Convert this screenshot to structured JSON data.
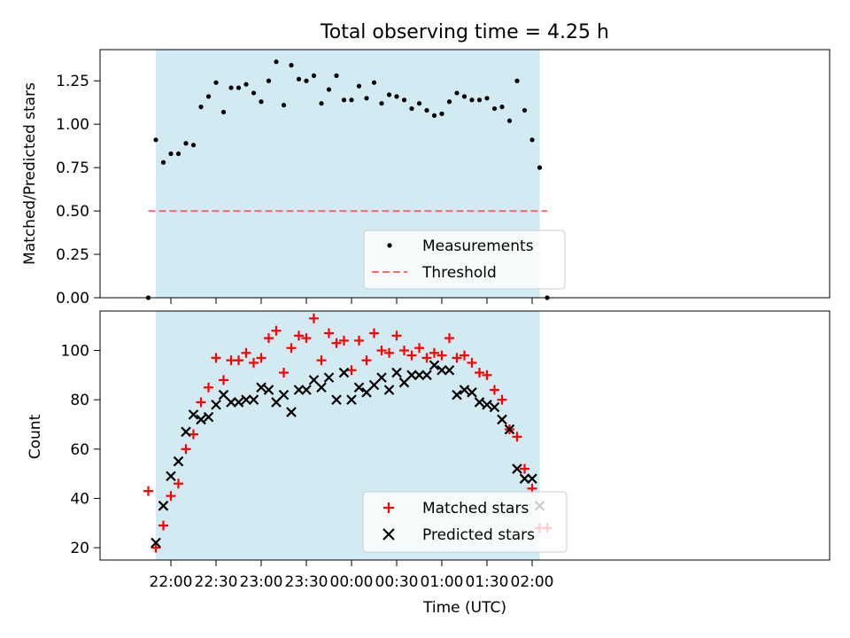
{
  "figure": {
    "title": "Total observing time = 4.25 h"
  },
  "colors": {
    "night_shade": "#add8e6",
    "measurement": "#000000",
    "threshold": "#ff5555",
    "matched": "#ff0000",
    "predicted": "#000000"
  },
  "x_ticks": [
    {
      "t": 0,
      "label": "22:00"
    },
    {
      "t": 30,
      "label": "22:30"
    },
    {
      "t": 60,
      "label": "23:00"
    },
    {
      "t": 90,
      "label": "23:30"
    },
    {
      "t": 120,
      "label": "00:00"
    },
    {
      "t": 150,
      "label": "00:30"
    },
    {
      "t": 180,
      "label": "01:00"
    },
    {
      "t": 210,
      "label": "01:30"
    },
    {
      "t": 240,
      "label": "02:00"
    }
  ],
  "chart_data": [
    {
      "type": "scatter",
      "title": "Total observing time = 4.25 h",
      "xlabel": "",
      "ylabel": "Matched/Predicted stars",
      "ylim": [
        0,
        1.43
      ],
      "yticks": [
        "0.00",
        "0.25",
        "0.50",
        "0.75",
        "1.00",
        "1.25"
      ],
      "grid": false,
      "legend_position": "bottom-center",
      "shaded_region": {
        "start": "21:50",
        "end": "02:05"
      },
      "threshold": {
        "name": "Threshold",
        "value": 0.5,
        "start": "21:45",
        "end": "02:10"
      },
      "series": [
        {
          "name": "Measurements",
          "x": [
            "21:45",
            "21:50",
            "21:55",
            "22:00",
            "22:05",
            "22:10",
            "22:15",
            "22:20",
            "22:25",
            "22:30",
            "22:35",
            "22:40",
            "22:45",
            "22:50",
            "22:55",
            "23:00",
            "23:05",
            "23:10",
            "23:15",
            "23:20",
            "23:25",
            "23:30",
            "23:35",
            "23:40",
            "23:45",
            "23:50",
            "23:55",
            "00:00",
            "00:05",
            "00:10",
            "00:15",
            "00:20",
            "00:25",
            "00:30",
            "00:35",
            "00:40",
            "00:45",
            "00:50",
            "00:55",
            "01:00",
            "01:05",
            "01:10",
            "01:15",
            "01:20",
            "01:25",
            "01:30",
            "01:35",
            "01:40",
            "01:45",
            "01:50",
            "01:55",
            "02:00",
            "02:05",
            "02:10"
          ],
          "y": [
            0.0,
            0.91,
            0.78,
            0.83,
            0.83,
            0.89,
            0.88,
            1.1,
            1.16,
            1.24,
            1.07,
            1.21,
            1.21,
            1.23,
            1.18,
            1.13,
            1.25,
            1.36,
            1.11,
            1.34,
            1.26,
            1.25,
            1.28,
            1.12,
            1.2,
            1.28,
            1.14,
            1.14,
            1.22,
            1.15,
            1.24,
            1.12,
            1.17,
            1.16,
            1.14,
            1.09,
            1.12,
            1.08,
            1.05,
            1.06,
            1.13,
            1.18,
            1.16,
            1.14,
            1.14,
            1.15,
            1.09,
            1.1,
            1.02,
            1.25,
            1.08,
            0.91,
            0.75,
            0.0
          ]
        }
      ]
    },
    {
      "type": "scatter",
      "xlabel": "Time (UTC)",
      "ylabel": "Count",
      "ylim": [
        15,
        116
      ],
      "yticks": [
        "20",
        "40",
        "60",
        "80",
        "100"
      ],
      "grid": false,
      "legend_position": "bottom-center",
      "shaded_region": {
        "start": "21:50",
        "end": "02:05"
      },
      "series": [
        {
          "name": "Matched stars",
          "marker": "+",
          "x": [
            "21:45",
            "21:50",
            "21:55",
            "22:00",
            "22:05",
            "22:10",
            "22:15",
            "22:20",
            "22:25",
            "22:30",
            "22:35",
            "22:40",
            "22:45",
            "22:50",
            "22:55",
            "23:00",
            "23:05",
            "23:10",
            "23:15",
            "23:20",
            "23:25",
            "23:30",
            "23:35",
            "23:40",
            "23:45",
            "23:50",
            "23:55",
            "00:00",
            "00:05",
            "00:10",
            "00:15",
            "00:20",
            "00:25",
            "00:30",
            "00:35",
            "00:40",
            "00:45",
            "00:50",
            "00:55",
            "01:00",
            "01:05",
            "01:10",
            "01:15",
            "01:20",
            "01:25",
            "01:30",
            "01:35",
            "01:40",
            "01:45",
            "01:50",
            "01:55",
            "02:00",
            "02:05",
            "02:10"
          ],
          "y": [
            43,
            20,
            29,
            41,
            46,
            60,
            66,
            79,
            85,
            97,
            88,
            96,
            96,
            99,
            95,
            97,
            105,
            108,
            91,
            101,
            106,
            105,
            113,
            96,
            107,
            103,
            104,
            92,
            104,
            96,
            107,
            100,
            99,
            106,
            100,
            98,
            101,
            97,
            99,
            98,
            105,
            97,
            98,
            95,
            91,
            90,
            84,
            80,
            68,
            65,
            52,
            44,
            28,
            28
          ]
        },
        {
          "name": "Predicted stars",
          "marker": "x",
          "x": [
            "21:50",
            "21:55",
            "22:00",
            "22:05",
            "22:10",
            "22:15",
            "22:20",
            "22:25",
            "22:30",
            "22:35",
            "22:40",
            "22:45",
            "22:50",
            "22:55",
            "23:00",
            "23:05",
            "23:10",
            "23:15",
            "23:20",
            "23:25",
            "23:30",
            "23:35",
            "23:40",
            "23:45",
            "23:50",
            "23:55",
            "00:00",
            "00:05",
            "00:10",
            "00:15",
            "00:20",
            "00:25",
            "00:30",
            "00:35",
            "00:40",
            "00:45",
            "00:50",
            "00:55",
            "01:00",
            "01:05",
            "01:10",
            "01:15",
            "01:20",
            "01:25",
            "01:30",
            "01:35",
            "01:40",
            "01:45",
            "01:50",
            "01:55",
            "02:00",
            "02:05"
          ],
          "y": [
            22,
            37,
            49,
            55,
            67,
            74,
            72,
            73,
            78,
            82,
            79,
            79,
            80,
            80,
            85,
            84,
            79,
            82,
            75,
            84,
            84,
            88,
            85,
            89,
            80,
            91,
            80,
            85,
            83,
            86,
            89,
            84,
            91,
            87,
            90,
            90,
            90,
            94,
            92,
            92,
            82,
            84,
            83,
            79,
            78,
            77,
            72,
            68,
            52,
            48,
            48,
            37
          ]
        }
      ]
    }
  ]
}
